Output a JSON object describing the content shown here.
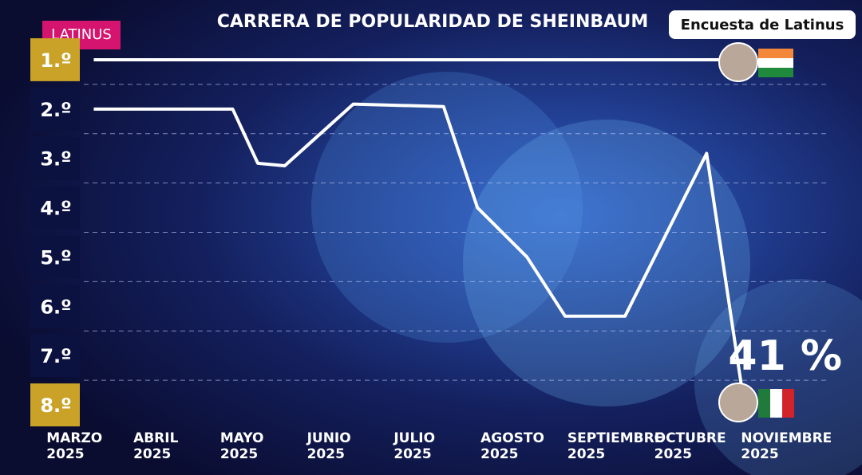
{
  "chart_data": {
    "type": "line",
    "title": "CARRERA DE POPULARIDAD DE SHEINBAUM",
    "badge": "Encuesta de Latinus",
    "logo": "LATINUS",
    "annotation": "41 %",
    "xlim": [
      2.28,
      12.21
    ],
    "xticks": [
      {
        "value": 3,
        "label": "MARZO\n2025"
      },
      {
        "value": 4,
        "label": "ABRIL\n2025"
      },
      {
        "value": 5,
        "label": "MAYO\n2025"
      },
      {
        "value": 6,
        "label": "JUNIO\n2025"
      },
      {
        "value": 7,
        "label": "JULIO\n2025"
      },
      {
        "value": 8,
        "label": "AGOSTO\n2025"
      },
      {
        "value": 9,
        "label": "SEPTIEMBRE\n2025"
      },
      {
        "value": 10,
        "label": "OCTUBRE\n2025"
      },
      {
        "value": 11,
        "label": "NOVIEMBRE\n2025"
      }
    ],
    "ylim": [
      8.5,
      0.5
    ],
    "yticks": [
      {
        "value": 1,
        "label": "1.º"
      },
      {
        "value": 2,
        "label": "2.º"
      },
      {
        "value": 3,
        "label": "3.º"
      },
      {
        "value": 4,
        "label": "4.º"
      },
      {
        "value": 5,
        "label": "5.º"
      },
      {
        "value": 6,
        "label": "6.º"
      },
      {
        "value": 7,
        "label": "7.º"
      },
      {
        "value": 8,
        "label": "8.º"
      }
    ],
    "series": [
      {
        "color": "#ffffff",
        "x": [
          3.36,
          10.7
        ],
        "values": [
          1,
          1
        ]
      },
      {
        "color": "#ffffff",
        "x": [
          3.36,
          4.96,
          5.25,
          5.56,
          6.35,
          7.39,
          7.78,
          8.35,
          8.79,
          9.48,
          10.42,
          10.82
        ],
        "values": [
          2,
          2,
          3.1,
          3.15,
          1.9,
          1.95,
          4,
          5,
          6.2,
          6.2,
          2.9,
          7.6
        ]
      }
    ]
  }
}
